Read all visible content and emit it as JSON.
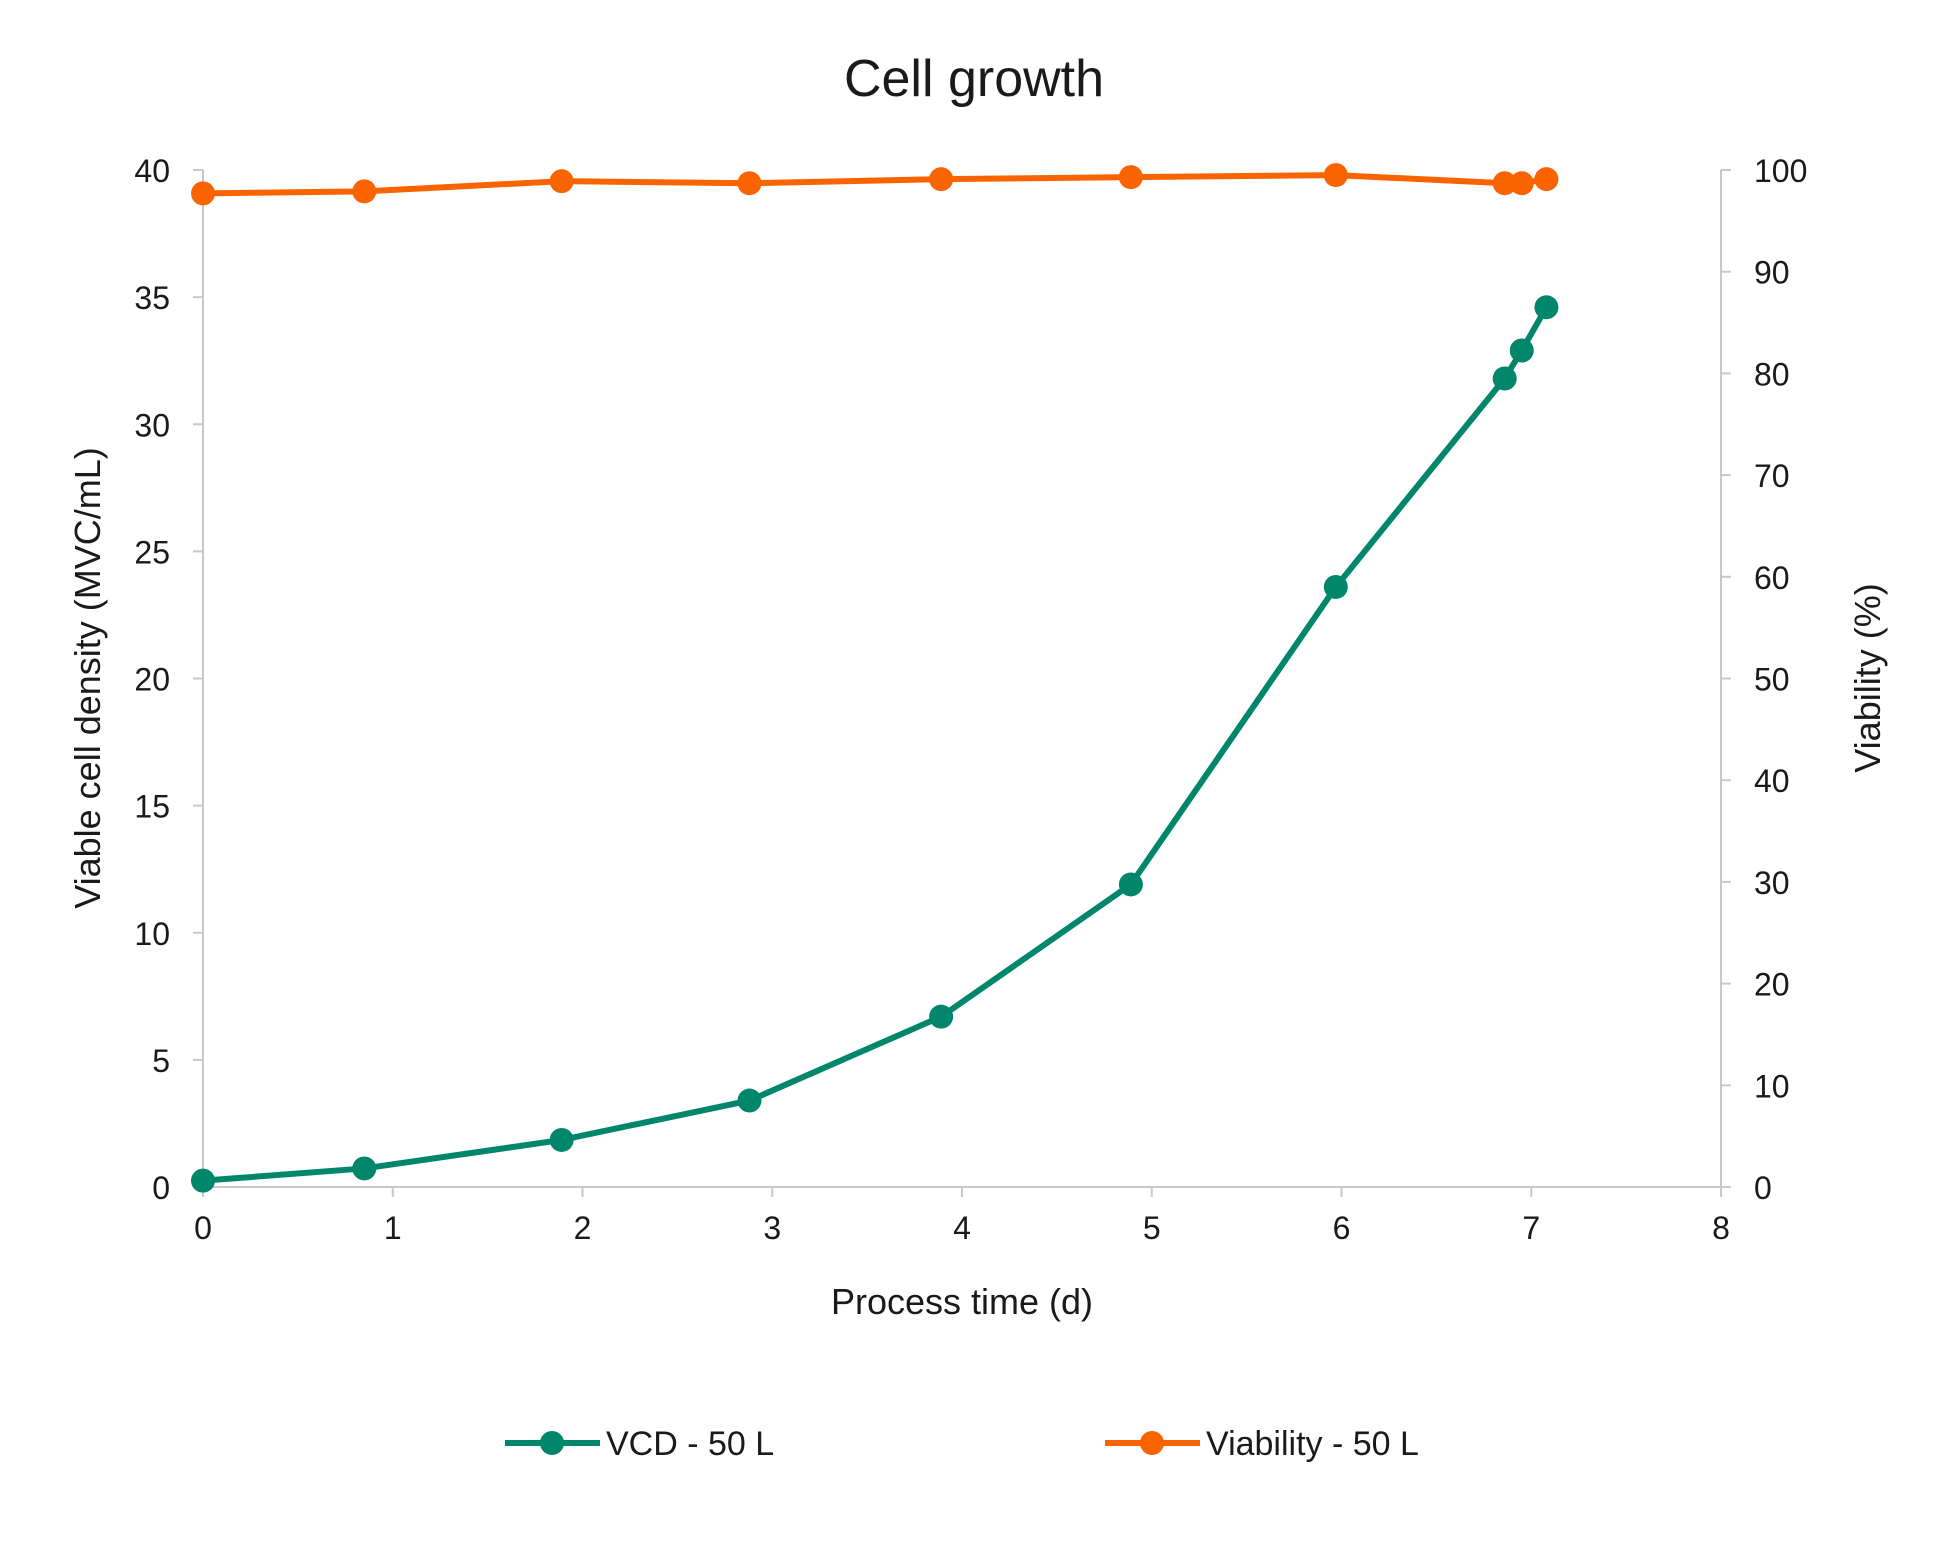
{
  "chart_data": {
    "type": "line",
    "title": "Cell growth",
    "xlabel": "Process time (d)",
    "ylabel": "Viable cell density (MVC/mL)",
    "y2label": "Viability (%)",
    "xlim": [
      0,
      8
    ],
    "ylim": [
      0,
      40
    ],
    "y2lim": [
      0,
      100
    ],
    "xticks": [
      "0",
      "1",
      "2",
      "3",
      "4",
      "5",
      "6",
      "7",
      "8"
    ],
    "yticks": [
      "0",
      "5",
      "10",
      "15",
      "20",
      "25",
      "30",
      "35",
      "40"
    ],
    "y2ticks": [
      "0",
      "10",
      "20",
      "30",
      "40",
      "50",
      "60",
      "70",
      "80",
      "90",
      "100"
    ],
    "grid": false,
    "legend_position": "bottom",
    "series": [
      {
        "name": "VCD -  50 L",
        "axis": "left",
        "color": "#00866b",
        "x": [
          0,
          0.85,
          1.89,
          2.88,
          3.89,
          4.89,
          5.97,
          6.86,
          6.95,
          7.08
        ],
        "y": [
          0.25,
          0.73,
          1.85,
          3.4,
          6.7,
          11.9,
          23.6,
          31.8,
          32.9,
          34.6
        ]
      },
      {
        "name": "Viability -  50 L",
        "axis": "right",
        "color": "#fa6400",
        "x": [
          0,
          0.85,
          1.89,
          2.88,
          3.89,
          4.89,
          5.97,
          6.86,
          6.95,
          7.08
        ],
        "y": [
          97.7,
          97.9,
          98.9,
          98.7,
          99.1,
          99.3,
          99.5,
          98.7,
          98.7,
          99.1
        ]
      }
    ]
  }
}
